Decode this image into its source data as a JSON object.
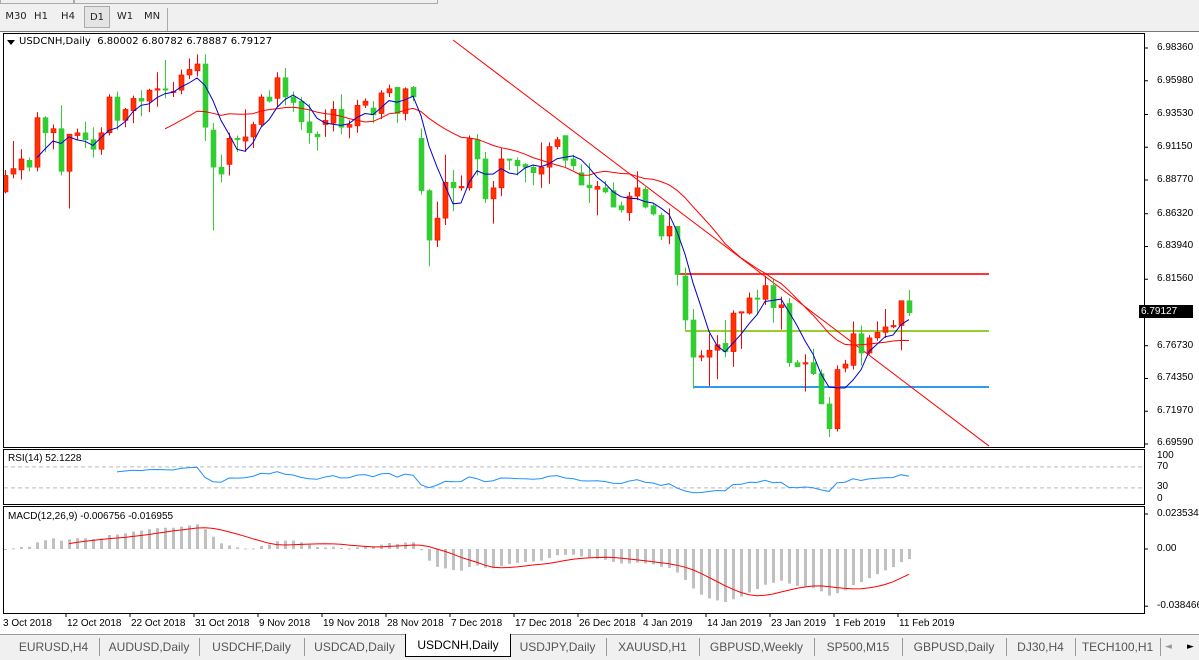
{
  "toolbar": {
    "timeframes": [
      {
        "label": "M30",
        "active": false
      },
      {
        "label": "H1",
        "active": false
      },
      {
        "label": "H4",
        "active": false
      },
      {
        "label": "D1",
        "active": true
      },
      {
        "label": "W1",
        "active": false
      },
      {
        "label": "MN",
        "active": false
      }
    ]
  },
  "chart": {
    "title": "USDCNH,Daily",
    "ohlc_readout": "6.80002 6.80782 6.78887 6.79127",
    "current_price_label": "6.79127",
    "price_axis": [
      "6.98360",
      "6.95980",
      "6.93530",
      "6.91150",
      "6.88770",
      "6.86320",
      "6.83940",
      "6.81560",
      "6.76730",
      "6.74350",
      "6.71970",
      "6.69590"
    ],
    "date_axis": [
      {
        "label": "3 Oct 2018",
        "bar": 0
      },
      {
        "label": "12 Oct 2018",
        "bar": 8
      },
      {
        "label": "22 Oct 2018",
        "bar": 16
      },
      {
        "label": "31 Oct 2018",
        "bar": 24
      },
      {
        "label": "9 Nov 2018",
        "bar": 32
      },
      {
        "label": "19 Nov 2018",
        "bar": 40
      },
      {
        "label": "28 Nov 2018",
        "bar": 48
      },
      {
        "label": "7 Dec 2018",
        "bar": 56
      },
      {
        "label": "17 Dec 2018",
        "bar": 64
      },
      {
        "label": "26 Dec 2018",
        "bar": 72
      },
      {
        "label": "4 Jan 2019",
        "bar": 80
      },
      {
        "label": "14 Jan 2019",
        "bar": 88
      },
      {
        "label": "23 Jan 2019",
        "bar": 96
      },
      {
        "label": "1 Feb 2019",
        "bar": 104
      },
      {
        "label": "11 Feb 2019",
        "bar": 112
      }
    ],
    "colors": {
      "bull": "#ff3300",
      "bear": "#32cd32",
      "ma_fast": "#0000cc",
      "ma_slow": "#ff0000",
      "rsi": "#1e90ff",
      "macd_hist": "#c0c0c0",
      "macd_signal": "#ff0000"
    }
  },
  "chart_data": {
    "type": "candlestick",
    "ylim": [
      6.6959,
      6.9836
    ],
    "candles_ohlc": [
      [
        6.879,
        6.895,
        6.878,
        6.891
      ],
      [
        6.892,
        6.916,
        6.889,
        6.896
      ],
      [
        6.895,
        6.91,
        6.888,
        6.903
      ],
      [
        6.902,
        6.904,
        6.894,
        6.897
      ],
      [
        6.897,
        6.937,
        6.894,
        6.933
      ],
      [
        6.933,
        6.934,
        6.908,
        6.922
      ],
      [
        6.922,
        6.928,
        6.91,
        6.925
      ],
      [
        6.925,
        6.942,
        6.891,
        6.894
      ],
      [
        6.894,
        6.921,
        6.867,
        6.921
      ],
      [
        6.92,
        6.925,
        6.917,
        6.922
      ],
      [
        6.922,
        6.93,
        6.911,
        6.917
      ],
      [
        6.917,
        6.926,
        6.904,
        6.91
      ],
      [
        6.91,
        6.926,
        6.906,
        6.922
      ],
      [
        6.922,
        6.95,
        6.92,
        6.948
      ],
      [
        6.948,
        6.952,
        6.924,
        6.931
      ],
      [
        6.931,
        6.94,
        6.926,
        6.939
      ],
      [
        6.938,
        6.949,
        6.929,
        6.947
      ],
      [
        6.947,
        6.953,
        6.934,
        6.945
      ],
      [
        6.945,
        6.954,
        6.937,
        6.953
      ],
      [
        6.953,
        6.966,
        6.941,
        6.954
      ],
      [
        6.954,
        6.975,
        6.947,
        6.953
      ],
      [
        6.952,
        6.959,
        6.948,
        6.952
      ],
      [
        6.953,
        6.968,
        6.95,
        6.964
      ],
      [
        6.964,
        6.976,
        6.961,
        6.968
      ],
      [
        6.967,
        6.979,
        6.963,
        6.972
      ],
      [
        6.972,
        6.979,
        6.916,
        6.926
      ],
      [
        6.924,
        6.929,
        6.851,
        6.897
      ],
      [
        6.897,
        6.906,
        6.886,
        6.892
      ],
      [
        6.899,
        6.922,
        6.891,
        6.918
      ],
      [
        6.918,
        6.92,
        6.908,
        6.917
      ],
      [
        6.916,
        6.939,
        6.908,
        6.919
      ],
      [
        6.919,
        6.93,
        6.911,
        6.928
      ],
      [
        6.928,
        6.95,
        6.926,
        6.948
      ],
      [
        6.948,
        6.953,
        6.944,
        6.945
      ],
      [
        6.947,
        6.966,
        6.941,
        6.962
      ],
      [
        6.962,
        6.969,
        6.942,
        6.948
      ],
      [
        6.948,
        6.952,
        6.937,
        6.944
      ],
      [
        6.945,
        6.948,
        6.924,
        6.93
      ],
      [
        6.93,
        6.943,
        6.914,
        6.922
      ],
      [
        6.921,
        6.923,
        6.909,
        6.919
      ],
      [
        6.928,
        6.939,
        6.919,
        6.931
      ],
      [
        6.929,
        6.945,
        6.923,
        6.939
      ],
      [
        6.939,
        6.95,
        6.921,
        6.926
      ],
      [
        6.926,
        6.931,
        6.918,
        6.928
      ],
      [
        6.927,
        6.946,
        6.922,
        6.942
      ],
      [
        6.942,
        6.947,
        6.94,
        6.945
      ],
      [
        6.94,
        6.945,
        6.929,
        6.935
      ],
      [
        6.936,
        6.953,
        6.932,
        6.951
      ],
      [
        6.951,
        6.957,
        6.948,
        6.954
      ],
      [
        6.955,
        6.955,
        6.929,
        6.936
      ],
      [
        6.936,
        6.955,
        6.931,
        6.954
      ],
      [
        6.955,
        6.956,
        6.945,
        6.948
      ],
      [
        6.918,
        6.925,
        6.877,
        6.88
      ],
      [
        6.88,
        6.881,
        6.825,
        6.844
      ],
      [
        6.844,
        6.872,
        6.839,
        6.86
      ],
      [
        6.86,
        6.906,
        6.855,
        6.886
      ],
      [
        6.886,
        6.895,
        6.865,
        6.882
      ],
      [
        6.882,
        6.891,
        6.88,
        6.883
      ],
      [
        6.882,
        6.92,
        6.88,
        6.918
      ],
      [
        6.917,
        6.921,
        6.891,
        6.903
      ],
      [
        6.903,
        6.908,
        6.871,
        6.874
      ],
      [
        6.874,
        6.887,
        6.856,
        6.882
      ],
      [
        6.882,
        6.911,
        6.876,
        6.903
      ],
      [
        6.903,
        6.903,
        6.895,
        6.902
      ],
      [
        6.902,
        6.904,
        6.891,
        6.898
      ],
      [
        6.899,
        6.9,
        6.886,
        6.897
      ],
      [
        6.897,
        6.899,
        6.884,
        6.893
      ],
      [
        6.892,
        6.915,
        6.882,
        6.897
      ],
      [
        6.897,
        6.915,
        6.885,
        6.912
      ],
      [
        6.912,
        6.919,
        6.91,
        6.917
      ],
      [
        6.92,
        6.92,
        6.897,
        6.902
      ],
      [
        6.903,
        6.906,
        6.895,
        6.898
      ],
      [
        6.893,
        6.899,
        6.884,
        6.884
      ],
      [
        6.884,
        6.9,
        6.871,
        6.882
      ],
      [
        6.881,
        6.887,
        6.862,
        6.883
      ],
      [
        6.882,
        6.887,
        6.878,
        6.879
      ],
      [
        6.88,
        6.886,
        6.868,
        6.868
      ],
      [
        6.869,
        6.872,
        6.864,
        6.866
      ],
      [
        6.864,
        6.879,
        6.858,
        6.876
      ],
      [
        6.876,
        6.894,
        6.873,
        6.882
      ],
      [
        6.881,
        6.884,
        6.867,
        6.868
      ],
      [
        6.869,
        6.871,
        6.862,
        6.863
      ],
      [
        6.862,
        6.864,
        6.844,
        6.847
      ],
      [
        6.847,
        6.867,
        6.841,
        6.854
      ],
      [
        6.854,
        6.854,
        6.811,
        6.819
      ],
      [
        6.818,
        6.824,
        6.779,
        6.786
      ],
      [
        6.786,
        6.794,
        6.736,
        6.759
      ],
      [
        6.759,
        6.764,
        6.756,
        6.76
      ],
      [
        6.759,
        6.776,
        6.738,
        6.764
      ],
      [
        6.764,
        6.775,
        6.743,
        6.768
      ],
      [
        6.769,
        6.786,
        6.759,
        6.763
      ],
      [
        6.763,
        6.793,
        6.752,
        6.791
      ],
      [
        6.791,
        6.792,
        6.765,
        6.792
      ],
      [
        6.791,
        6.806,
        6.79,
        6.802
      ],
      [
        6.802,
        6.808,
        6.79,
        6.801
      ],
      [
        6.801,
        6.818,
        6.797,
        6.811
      ],
      [
        6.811,
        6.816,
        6.784,
        6.795
      ],
      [
        6.795,
        6.803,
        6.779,
        6.797
      ],
      [
        6.798,
        6.802,
        6.752,
        6.755
      ],
      [
        6.755,
        6.757,
        6.752,
        6.752
      ],
      [
        6.754,
        6.761,
        6.734,
        6.755
      ],
      [
        6.755,
        6.765,
        6.746,
        6.747
      ],
      [
        6.747,
        6.75,
        6.725,
        6.725
      ],
      [
        6.725,
        6.73,
        6.701,
        6.707
      ],
      [
        6.707,
        6.753,
        6.705,
        6.75
      ],
      [
        6.751,
        6.757,
        6.748,
        6.754
      ],
      [
        6.753,
        6.785,
        6.75,
        6.776
      ],
      [
        6.776,
        6.782,
        6.753,
        6.762
      ],
      [
        6.762,
        6.775,
        6.761,
        6.773
      ],
      [
        6.773,
        6.785,
        6.771,
        6.777
      ],
      [
        6.777,
        6.794,
        6.773,
        6.781
      ],
      [
        6.781,
        6.786,
        6.78,
        6.782
      ],
      [
        6.782,
        6.8,
        6.764,
        6.8
      ],
      [
        6.80002,
        6.80782,
        6.78887,
        6.79127
      ]
    ],
    "horizontal_levels": [
      {
        "price": 6.8194,
        "from_bar": 84,
        "color": "#ff3333"
      },
      {
        "price": 6.778,
        "from_bar": 85,
        "color": "#9acd32"
      },
      {
        "price": 6.7373,
        "from_bar": 86,
        "color": "#3399ee"
      }
    ],
    "trendline": {
      "from": {
        "bar": 56,
        "price": 6.9894
      },
      "to": {
        "bar": 123,
        "price": 6.6944
      },
      "color": "#ff0000"
    },
    "rsi": {
      "label": "RSI(14) 52.1228",
      "axis": [
        "100",
        "70",
        "30",
        "0"
      ],
      "levels": [
        70,
        30
      ]
    },
    "macd": {
      "label": "MACD(12,26,9) -0.006756 -0.016955",
      "axis": [
        "0.023534",
        "0.00",
        "-0.038466"
      ],
      "axis_values": [
        0.023534,
        0,
        -0.038466
      ]
    }
  },
  "tabs": [
    {
      "label": "EURUSD,H4",
      "active": false
    },
    {
      "label": "AUDUSD,Daily",
      "active": false
    },
    {
      "label": "USDCHF,Daily",
      "active": false
    },
    {
      "label": "USDCAD,Daily",
      "active": false
    },
    {
      "label": "USDCNH,Daily",
      "active": true
    },
    {
      "label": "USDJPY,Daily",
      "active": false
    },
    {
      "label": "XAUUSD,H1",
      "active": false
    },
    {
      "label": "GBPUSD,Weekly",
      "active": false
    },
    {
      "label": "SP500,M15",
      "active": false
    },
    {
      "label": "GBPUSD,Daily",
      "active": false
    },
    {
      "label": "DJ30,H4",
      "active": false
    },
    {
      "label": "TECH100,H1",
      "active": false
    }
  ]
}
